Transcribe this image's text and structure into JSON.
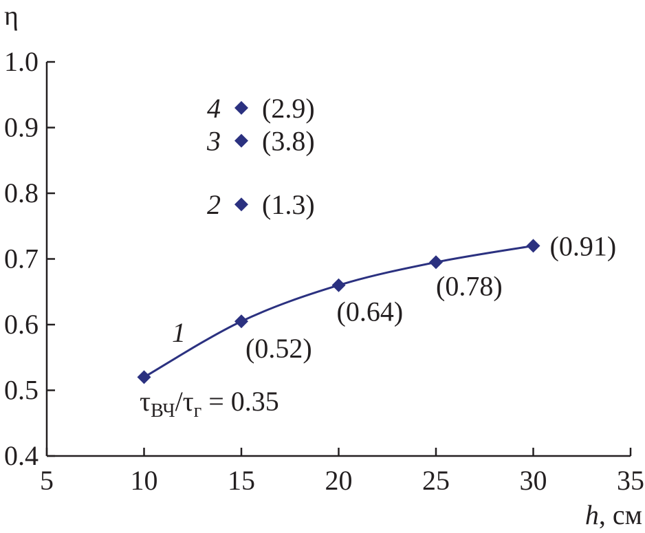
{
  "chart_data": {
    "type": "scatter",
    "title": "",
    "xlabel": "h",
    "xlabel_unit": ", см",
    "ylabel": "η",
    "xlim": [
      5,
      35
    ],
    "ylim": [
      0.4,
      1.0
    ],
    "x_ticks": [
      "5",
      "10",
      "15",
      "20",
      "25",
      "30",
      "35"
    ],
    "y_ticks": [
      "0.4",
      "0.5",
      "0.6",
      "0.7",
      "0.8",
      "0.9",
      "1.0"
    ],
    "grid": false,
    "marker_color": "#2b3180",
    "line_color": "#2b3180",
    "series": [
      {
        "name": "1",
        "connected": true,
        "points": [
          {
            "x": 10,
            "y": 0.52,
            "label": ""
          },
          {
            "x": 15,
            "y": 0.605,
            "label": "(0.52)"
          },
          {
            "x": 20,
            "y": 0.66,
            "label": "(0.64)"
          },
          {
            "x": 25,
            "y": 0.695,
            "label": "(0.78)"
          },
          {
            "x": 30,
            "y": 0.72,
            "label": "(0.91)"
          }
        ]
      },
      {
        "name": "2",
        "connected": false,
        "points": [
          {
            "x": 15,
            "y": 0.783,
            "label": "(1.3)"
          }
        ]
      },
      {
        "name": "3",
        "connected": false,
        "points": [
          {
            "x": 15,
            "y": 0.88,
            "label": "(3.8)"
          }
        ]
      },
      {
        "name": "4",
        "connected": false,
        "points": [
          {
            "x": 15,
            "y": 0.93,
            "label": "(2.9)"
          }
        ]
      }
    ],
    "annotation": {
      "tau_main": "τ",
      "sub_1": "ВЧ",
      "slash": "/τ",
      "sub_2": "г",
      "equals": " = 0.35"
    }
  }
}
